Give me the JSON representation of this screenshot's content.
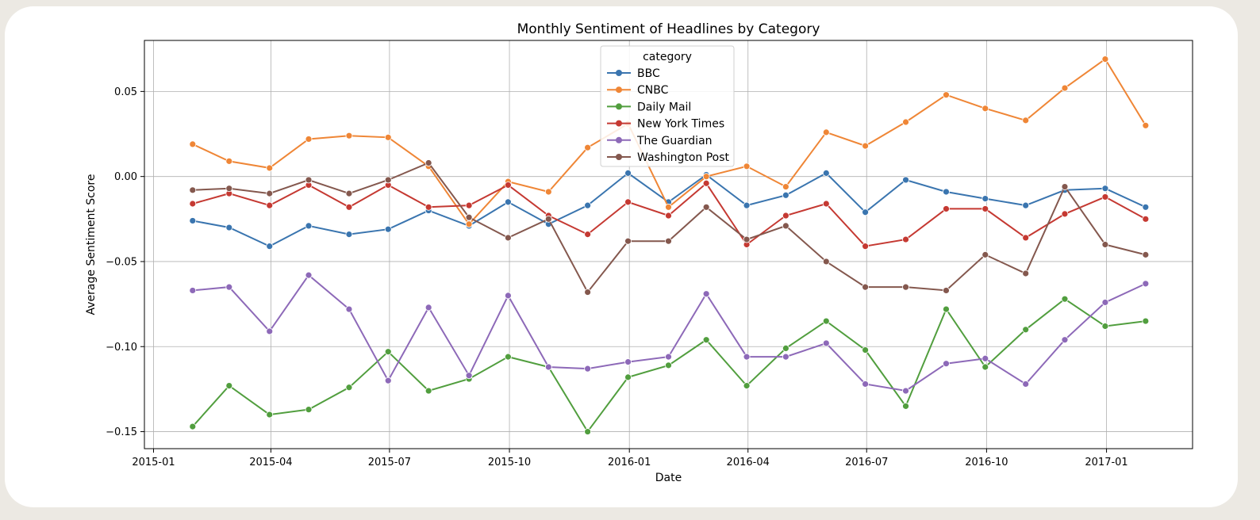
{
  "chart_data": {
    "type": "line",
    "title": "Monthly Sentiment of Headlines by Category",
    "xlabel": "Date",
    "ylabel": "Average Sentiment Score",
    "ylim": [
      -0.16,
      0.08
    ],
    "xlim": [
      "2014-12-25",
      "2017-03-08"
    ],
    "grid": true,
    "legend": {
      "title": "category",
      "position": "top-center"
    },
    "x_ticks": [
      "2015-01",
      "2015-04",
      "2015-07",
      "2015-10",
      "2016-01",
      "2016-04",
      "2016-07",
      "2016-10",
      "2017-01"
    ],
    "y_ticks": [
      0.05,
      0.0,
      -0.05,
      -0.1,
      -0.15
    ],
    "y_tick_labels": [
      "0.05",
      "0.00",
      "−0.05",
      "−0.10",
      "−0.15"
    ],
    "x": [
      "2015-01-31",
      "2015-02-28",
      "2015-03-31",
      "2015-04-30",
      "2015-05-31",
      "2015-06-30",
      "2015-07-31",
      "2015-08-31",
      "2015-09-30",
      "2015-10-31",
      "2015-11-30",
      "2015-12-31",
      "2016-01-31",
      "2016-02-29",
      "2016-03-31",
      "2016-04-30",
      "2016-05-31",
      "2016-06-30",
      "2016-07-31",
      "2016-08-31",
      "2016-09-30",
      "2016-10-31",
      "2016-11-30",
      "2016-12-31",
      "2017-01-31"
    ],
    "series": [
      {
        "name": "BBC",
        "color": "#3a75af",
        "values": [
          -0.026,
          -0.03,
          -0.041,
          -0.029,
          -0.034,
          -0.031,
          -0.02,
          -0.029,
          -0.015,
          -0.028,
          -0.017,
          0.002,
          -0.015,
          0.001,
          -0.017,
          -0.011,
          0.002,
          -0.021,
          -0.002,
          -0.009,
          -0.013,
          -0.017,
          -0.008,
          -0.007,
          -0.018
        ]
      },
      {
        "name": "CNBC",
        "color": "#ef8636",
        "values": [
          0.019,
          0.009,
          0.005,
          0.022,
          0.024,
          0.023,
          0.006,
          -0.028,
          -0.003,
          -0.009,
          0.017,
          0.031,
          -0.018,
          0.0,
          0.006,
          -0.006,
          0.026,
          0.018,
          0.032,
          0.048,
          0.04,
          0.033,
          0.052,
          0.069,
          0.03
        ]
      },
      {
        "name": "Daily Mail",
        "color": "#519e3e",
        "values": [
          -0.147,
          -0.123,
          -0.14,
          -0.137,
          -0.124,
          -0.103,
          -0.126,
          -0.119,
          -0.106,
          -0.112,
          -0.15,
          -0.118,
          -0.111,
          -0.096,
          -0.123,
          -0.101,
          -0.085,
          -0.102,
          -0.135,
          -0.078,
          -0.112,
          -0.09,
          -0.072,
          -0.088,
          -0.085
        ]
      },
      {
        "name": "New York Times",
        "color": "#c53932",
        "values": [
          -0.016,
          -0.01,
          -0.017,
          -0.005,
          -0.018,
          -0.005,
          -0.018,
          -0.017,
          -0.005,
          -0.023,
          -0.034,
          -0.015,
          -0.023,
          -0.004,
          -0.04,
          -0.023,
          -0.016,
          -0.041,
          -0.037,
          -0.019,
          -0.019,
          -0.036,
          -0.022,
          -0.012,
          -0.025
        ]
      },
      {
        "name": "The Guardian",
        "color": "#8d69b8",
        "values": [
          -0.067,
          -0.065,
          -0.091,
          -0.058,
          -0.078,
          -0.12,
          -0.077,
          -0.117,
          -0.07,
          -0.112,
          -0.113,
          -0.109,
          -0.106,
          -0.069,
          -0.106,
          -0.106,
          -0.098,
          -0.122,
          -0.126,
          -0.11,
          -0.107,
          -0.122,
          -0.096,
          -0.074,
          -0.063
        ]
      },
      {
        "name": "Washington Post",
        "color": "#84584e",
        "values": [
          -0.008,
          -0.007,
          -0.01,
          -0.002,
          -0.01,
          -0.002,
          0.008,
          -0.024,
          -0.036,
          -0.025,
          -0.068,
          -0.038,
          -0.038,
          -0.018,
          -0.037,
          -0.029,
          -0.05,
          -0.065,
          -0.065,
          -0.067,
          -0.046,
          -0.057,
          -0.006,
          -0.04,
          -0.046
        ]
      }
    ]
  }
}
